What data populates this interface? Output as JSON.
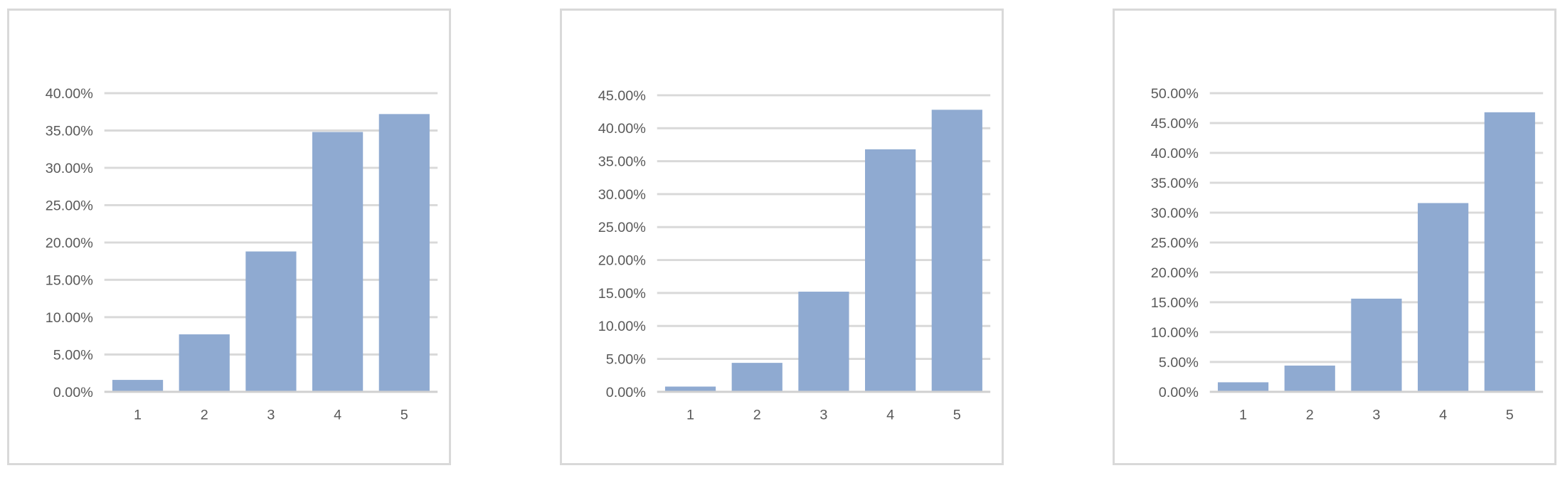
{
  "colors": {
    "bar": "#8faad1",
    "gridline": "#d9d9d9",
    "axis_line": "#d0d0d0",
    "tick_text": "#595959",
    "frame": "#d9d9d9"
  },
  "chart_data": [
    {
      "type": "bar",
      "title": "",
      "xlabel": "",
      "ylabel": "",
      "categories": [
        "1",
        "2",
        "3",
        "4",
        "5"
      ],
      "values": [
        1.6,
        7.7,
        18.8,
        34.8,
        37.2
      ],
      "ylim": [
        0,
        40
      ],
      "y_step": 5,
      "y_ticks": [
        "0.00%",
        "5.00%",
        "10.00%",
        "15.00%",
        "20.00%",
        "25.00%",
        "30.00%",
        "35.00%",
        "40.00%"
      ],
      "grid": true,
      "legend": "none"
    },
    {
      "type": "bar",
      "title": "",
      "xlabel": "",
      "ylabel": "",
      "categories": [
        "1",
        "2",
        "3",
        "4",
        "5"
      ],
      "values": [
        0.8,
        4.4,
        15.2,
        36.8,
        42.8
      ],
      "ylim": [
        0,
        45
      ],
      "y_step": 5,
      "y_ticks": [
        "0.00%",
        "5.00%",
        "10.00%",
        "15.00%",
        "20.00%",
        "25.00%",
        "30.00%",
        "35.00%",
        "40.00%",
        "45.00%"
      ],
      "grid": true,
      "legend": "none"
    },
    {
      "type": "bar",
      "title": "",
      "xlabel": "",
      "ylabel": "",
      "categories": [
        "1",
        "2",
        "3",
        "4",
        "5"
      ],
      "values": [
        1.6,
        4.4,
        15.6,
        31.6,
        46.8
      ],
      "ylim": [
        0,
        50
      ],
      "y_step": 5,
      "y_ticks": [
        "0.00%",
        "5.00%",
        "10.00%",
        "15.00%",
        "20.00%",
        "25.00%",
        "30.00%",
        "35.00%",
        "40.00%",
        "45.00%",
        "50.00%"
      ],
      "grid": true,
      "legend": "none"
    }
  ]
}
